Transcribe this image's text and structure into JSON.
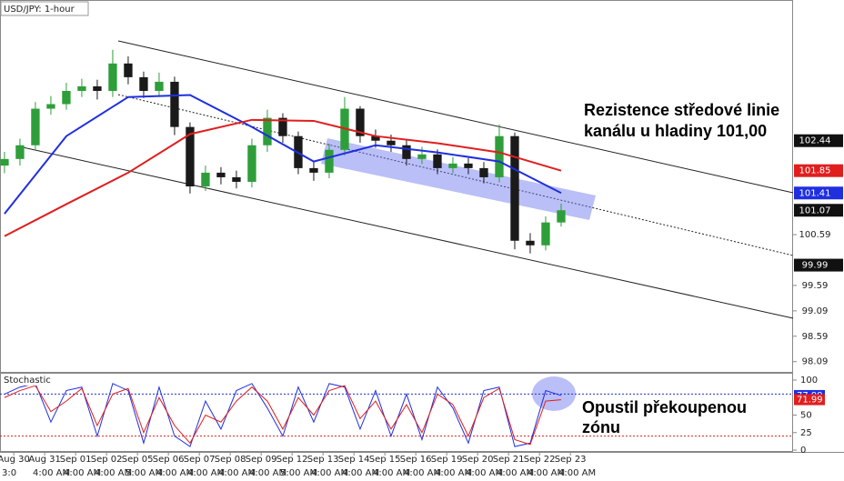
{
  "chart_data": [
    {
      "type": "candlestick",
      "title": "USD/JPY: 1-hour",
      "annotation": [
        "Rezistence středové linie",
        "kanálu u hladiny 101,00"
      ],
      "xlim": [
        -0.29,
        51
      ],
      "ylim": [
        97.87,
        105.21
      ],
      "yticks": [
        98.09,
        98.59,
        99.09,
        99.59,
        100.59
      ],
      "xticks": [
        {
          "value": 0.6,
          "label": "Aug 30"
        },
        {
          "value": 2.6,
          "label": "Aug 31"
        },
        {
          "value": 4.6,
          "label": "Sep 01"
        },
        {
          "value": 6.6,
          "label": "Sep 02"
        },
        {
          "value": 8.6,
          "label": "Sep 05"
        },
        {
          "value": 10.6,
          "label": "Sep 06"
        },
        {
          "value": 12.6,
          "label": "Sep 07"
        },
        {
          "value": 14.6,
          "label": "Sep 08"
        },
        {
          "value": 16.6,
          "label": "Sep 09"
        },
        {
          "value": 18.6,
          "label": "Sep 12"
        },
        {
          "value": 20.6,
          "label": "Sep 13"
        },
        {
          "value": 22.6,
          "label": "Sep 14"
        },
        {
          "value": 24.6,
          "label": "Sep 15"
        },
        {
          "value": 26.6,
          "label": "Sep 16"
        },
        {
          "value": 28.6,
          "label": "Sep 19"
        },
        {
          "value": 30.6,
          "label": "Sep 20"
        },
        {
          "value": 32.6,
          "label": "Sep 21"
        },
        {
          "value": 34.6,
          "label": "Sep 22"
        },
        {
          "value": 36.6,
          "label": "Sep 23"
        }
      ],
      "time_labels": [
        "3:0",
        "4:00 AM",
        "4:00 AM",
        "4:00 AM",
        "5:00 AM",
        "4:00 AM",
        "4:00 AM",
        "4:00 AM",
        "4:00 AM",
        "5:00 AM",
        "4:00 AM",
        "4:00 AM",
        "4:00 AM",
        "4:00 AM",
        "4:00 AM",
        "4:00 AM",
        "4:00 AM",
        "4:00 AM",
        "4:00 AM"
      ],
      "open": [
        101.95,
        102.08,
        102.35,
        103.07,
        103.16,
        103.42,
        103.51,
        103.42,
        103.96,
        103.69,
        103.42,
        103.6,
        102.71,
        101.54,
        101.81,
        101.72,
        101.63,
        102.35,
        102.89,
        102.53,
        101.9,
        101.81,
        102.26,
        103.07,
        102.53,
        102.44,
        102.35,
        102.08,
        102.17,
        101.9,
        101.99,
        101.9,
        101.72,
        102.53,
        100.47,
        100.38,
        100.83
      ],
      "high": [
        102.22,
        102.48,
        103.2,
        103.32,
        103.58,
        103.66,
        103.64,
        104.23,
        104.1,
        103.8,
        103.78,
        103.7,
        102.8,
        101.95,
        101.92,
        101.85,
        102.48,
        103.05,
        102.98,
        102.62,
        102.02,
        102.38,
        103.3,
        103.12,
        102.66,
        102.56,
        102.45,
        102.32,
        102.27,
        102.12,
        102.1,
        102.02,
        102.76,
        102.6,
        100.62,
        100.95,
        101.2
      ],
      "low": [
        101.8,
        101.95,
        102.25,
        102.95,
        103.05,
        103.3,
        103.25,
        103.3,
        103.55,
        103.28,
        103.3,
        102.55,
        101.4,
        101.45,
        101.58,
        101.5,
        101.52,
        102.22,
        102.4,
        101.78,
        101.65,
        101.7,
        102.15,
        102.4,
        102.3,
        102.22,
        101.95,
        101.98,
        101.78,
        101.8,
        101.78,
        101.6,
        101.62,
        100.3,
        100.22,
        100.28,
        100.75
      ],
      "close": [
        102.08,
        102.35,
        103.07,
        103.16,
        103.42,
        103.51,
        103.42,
        103.96,
        103.69,
        103.42,
        103.6,
        102.71,
        101.54,
        101.81,
        101.72,
        101.63,
        102.35,
        102.89,
        102.53,
        101.9,
        101.81,
        102.26,
        103.07,
        102.53,
        102.44,
        102.35,
        102.08,
        102.17,
        101.9,
        101.99,
        101.9,
        101.72,
        102.53,
        100.47,
        100.38,
        100.83,
        101.07
      ],
      "up_color": "#2e9e3a",
      "down_color": "#1a1a1a",
      "lines": [
        {
          "color": "#1f2fe0",
          "x": [
            0,
            4,
            8,
            12,
            16,
            20,
            24,
            28,
            32,
            36
          ],
          "values": [
            101.0,
            102.53,
            103.3,
            103.34,
            102.71,
            102.03,
            102.35,
            102.21,
            102.03,
            101.41
          ]
        },
        {
          "color": "#e01e1e",
          "x": [
            0,
            4,
            8,
            12,
            16,
            20,
            24,
            28,
            32,
            36
          ],
          "values": [
            100.56,
            101.19,
            101.81,
            102.57,
            102.85,
            102.83,
            102.53,
            102.39,
            102.21,
            101.85
          ]
        }
      ],
      "price_labels": [
        {
          "value": 102.44,
          "color": "#111111"
        },
        {
          "value": 101.85,
          "color": "#e01e1e"
        },
        {
          "value": 101.41,
          "color": "#1f2fe0"
        },
        {
          "value": 101.07,
          "color": "#111111"
        },
        {
          "value": 99.99,
          "color": "#111111"
        }
      ]
    },
    {
      "type": "stochastic",
      "title": "Stochastic",
      "annotation": [
        "Opustil překoupenou",
        "zónu"
      ],
      "xlim": [
        -0.29,
        51
      ],
      "ylim": [
        -2.6,
        110.4
      ],
      "yticks": [
        100,
        50,
        25,
        0
      ],
      "levels": [
        {
          "value": 80,
          "color": "#1f2fe0"
        },
        {
          "value": 20,
          "color": "#e01e1e"
        }
      ],
      "x": [
        0,
        1,
        2,
        3,
        4,
        5,
        6,
        7,
        8,
        9,
        10,
        11,
        12,
        13,
        14,
        15,
        16,
        17,
        18,
        19,
        20,
        21,
        22,
        23,
        24,
        25,
        26,
        27,
        28,
        29,
        30,
        31,
        32,
        33,
        34,
        35,
        36
      ],
      "series": [
        {
          "color": "#1f2fe0",
          "values": [
            80,
            90,
            95,
            40,
            85,
            90,
            20,
            95,
            85,
            10,
            90,
            20,
            5,
            70,
            30,
            85,
            95,
            60,
            20,
            90,
            40,
            95,
            90,
            30,
            85,
            20,
            80,
            15,
            90,
            60,
            10,
            85,
            90,
            5,
            10,
            85,
            77.99
          ]
        },
        {
          "color": "#e01e1e",
          "values": [
            75,
            85,
            92,
            55,
            70,
            88,
            35,
            80,
            88,
            25,
            75,
            35,
            10,
            50,
            40,
            70,
            90,
            70,
            30,
            75,
            50,
            85,
            92,
            45,
            70,
            30,
            65,
            25,
            80,
            65,
            20,
            75,
            88,
            15,
            8,
            70,
            71.99
          ]
        }
      ]
    }
  ]
}
